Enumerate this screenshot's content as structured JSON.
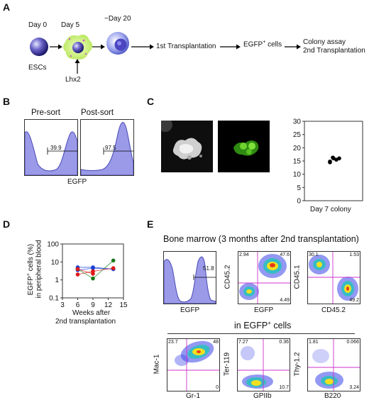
{
  "panel_labels": {
    "a": "A",
    "b": "B",
    "c": "C",
    "d": "D",
    "e": "E"
  },
  "panel_a": {
    "day0": "Day 0",
    "day5": "Day 5",
    "day20": "~Day 20",
    "escs": "ESCs",
    "lhx2": "Lhx2",
    "step1": "1st Transplantation",
    "step2_main": "EGFP",
    "step2_sup": "+",
    "step2_tail": " cells",
    "step3_line1": "Colony assay",
    "step3_line2": "2nd Transplantation"
  },
  "panel_b": {
    "pre_title": "Pre-sort",
    "post_title": "Post-sort",
    "pre_value": "39.9",
    "post_value": "97.5",
    "xlabel": "EGFP"
  },
  "panel_c": {
    "xlabel": "Day 7 colony"
  },
  "panel_d": {
    "ylabel_line1_main": "EGFP",
    "ylabel_line1_sup": "+",
    "ylabel_line1_tail": " cells (%)",
    "ylabel_line2": "in peripheral blood",
    "xlabel_line1": "Weeks after",
    "xlabel_line2": "2nd transplantation"
  },
  "panel_e": {
    "title": "Bone marrow (3 months after 2nd transplantation)",
    "subtitle_main": "in EGFP",
    "subtitle_sup": "+",
    "subtitle_tail": " cells",
    "hist_value": "51.8",
    "hist_xlabel": "EGFP",
    "plots": [
      {
        "x": "EGFP",
        "y": "CD45.2",
        "q": [
          "2.94",
          "47.6",
          "",
          "4.49"
        ]
      },
      {
        "x": "CD45.2",
        "y": "CD45.1",
        "q": [
          "30.1",
          "1.53",
          "",
          "49.2"
        ]
      },
      {
        "x": "Gr-1",
        "y": "Mac-1",
        "q": [
          "23.7",
          "48",
          "",
          "0"
        ]
      },
      {
        "x": "GPIIb",
        "y": "Ter-119",
        "q": [
          "7.27",
          "0.36",
          "",
          "10.7"
        ]
      },
      {
        "x": "B220",
        "y": "Thy-1.2",
        "q": [
          "1.81",
          "0.066",
          "",
          "3.24"
        ]
      }
    ]
  },
  "colors": {
    "hist_fill": "#9a9ae8",
    "hist_stroke": "#4a4ab8",
    "gate": "#cc33cc",
    "dot_blue": "#1a3fd8",
    "dot_red": "#e01818",
    "dot_green": "#187a18"
  },
  "chart_data": [
    {
      "type": "scatter",
      "panel": "C",
      "categories": [
        "Day 7 colony"
      ],
      "values": [
        14.5,
        15.5,
        16,
        16,
        14.8,
        16.3
      ],
      "ylim": [
        0,
        30
      ],
      "yticks": [
        0,
        5,
        10,
        15,
        20,
        25,
        30
      ],
      "xlabel": "Day 7 colony",
      "ylabel": ""
    },
    {
      "type": "line",
      "panel": "D",
      "x_scale": "linear",
      "y_scale": "log",
      "xlim": [
        3,
        15
      ],
      "xticks": [
        3,
        6,
        9,
        12,
        15
      ],
      "ylim": [
        0.1,
        100
      ],
      "yticks": [
        0.1,
        1,
        10,
        100
      ],
      "xlabel": "Weeks after 2nd transplantation",
      "ylabel": "EGFP+ cells (%) in peripheral blood",
      "series": [
        {
          "color": "blue",
          "points": [
            [
              6,
              5
            ],
            [
              9,
              5
            ],
            [
              13,
              4
            ]
          ]
        },
        {
          "color": "blue",
          "points": [
            [
              6,
              3.5
            ],
            [
              9,
              4.5
            ],
            [
              13,
              4
            ]
          ]
        },
        {
          "color": "red",
          "points": [
            [
              6,
              2
            ],
            [
              9,
              3
            ],
            [
              13,
              4.5
            ]
          ]
        },
        {
          "color": "green",
          "points": [
            [
              6,
              4
            ],
            [
              9,
              1.2
            ],
            [
              13,
              12
            ]
          ]
        },
        {
          "color": "red",
          "points": [
            [
              6,
              4
            ],
            [
              9,
              2.2
            ]
          ]
        }
      ]
    }
  ]
}
